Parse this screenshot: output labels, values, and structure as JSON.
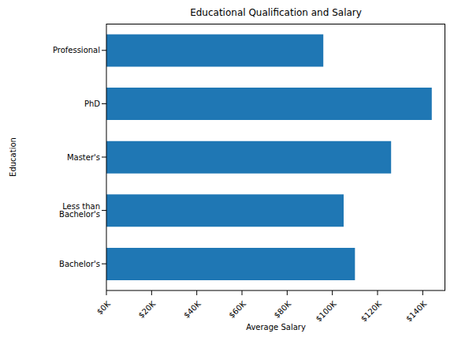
{
  "chart_data": {
    "type": "bar",
    "title": "Educational Qualification and Salary",
    "x_label": "Average Salary",
    "y_label": "Education",
    "orientation": "horizontal",
    "categories": [
      "Bachelor's",
      "Less than Bachelor's",
      "Master's",
      "PhD",
      "Professional"
    ],
    "values": [
      110000,
      105000,
      126000,
      144000,
      96000
    ],
    "color": "#1f77b4",
    "xlim": [
      0,
      150000
    ],
    "xticks": [
      {
        "value": 0,
        "label": "$0K"
      },
      {
        "value": 20000,
        "label": "$20K"
      },
      {
        "value": 40000,
        "label": "$40K"
      },
      {
        "value": 60000,
        "label": "$60K"
      },
      {
        "value": 80000,
        "label": "$80K"
      },
      {
        "value": 100000,
        "label": "$100K"
      },
      {
        "value": 120000,
        "label": "$120K"
      },
      {
        "value": 140000,
        "label": "$140K"
      }
    ],
    "grid": false
  }
}
